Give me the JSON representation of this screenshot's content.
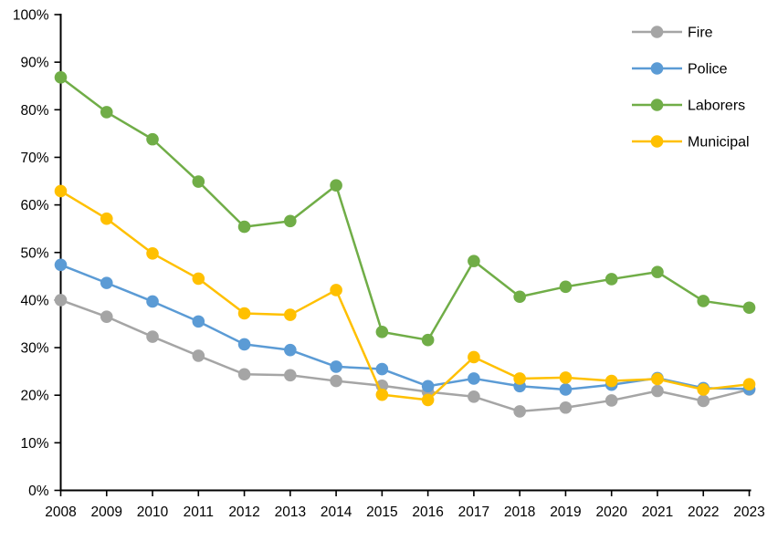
{
  "chart_data": {
    "type": "line",
    "title": "",
    "xlabel": "",
    "ylabel": "",
    "x": [
      "2008",
      "2009",
      "2010",
      "2011",
      "2012",
      "2013",
      "2014",
      "2015",
      "2016",
      "2017",
      "2018",
      "2019",
      "2020",
      "2021",
      "2022",
      "2023"
    ],
    "series": [
      {
        "name": "Fire",
        "color": "#A5A5A5",
        "values": [
          40.0,
          36.5,
          32.3,
          28.3,
          24.4,
          24.2,
          23.0,
          22.0,
          20.7,
          19.7,
          16.6,
          17.4,
          18.9,
          20.9,
          18.8,
          21.2
        ]
      },
      {
        "name": "Police",
        "color": "#5B9BD5",
        "values": [
          47.4,
          43.6,
          39.7,
          35.5,
          30.7,
          29.5,
          26.0,
          25.5,
          21.9,
          23.5,
          21.9,
          21.2,
          22.2,
          23.6,
          21.5,
          21.3
        ]
      },
      {
        "name": "Laborers",
        "color": "#70AD47",
        "values": [
          86.8,
          79.5,
          73.8,
          64.9,
          55.4,
          56.6,
          64.1,
          33.3,
          31.6,
          48.2,
          40.7,
          42.8,
          44.4,
          45.9,
          39.8,
          38.4
        ]
      },
      {
        "name": "Municipal",
        "color": "#FFC000",
        "values": [
          62.9,
          57.1,
          49.8,
          44.5,
          37.2,
          36.9,
          42.1,
          20.1,
          19.0,
          28.0,
          23.5,
          23.7,
          23.0,
          23.4,
          21.2,
          22.3
        ]
      }
    ],
    "ylim": [
      0,
      100
    ],
    "ytick_step": 10,
    "ytick_labels": [
      "0%",
      "10%",
      "20%",
      "30%",
      "40%",
      "50%",
      "60%",
      "70%",
      "80%",
      "90%",
      "100%"
    ],
    "legend_entries": [
      "Fire",
      "Police",
      "Laborers",
      "Municipal"
    ],
    "legend_position": "top-right",
    "grid": false,
    "marker": "circle",
    "axis_color": "#000000",
    "background": "#FFFFFF"
  }
}
